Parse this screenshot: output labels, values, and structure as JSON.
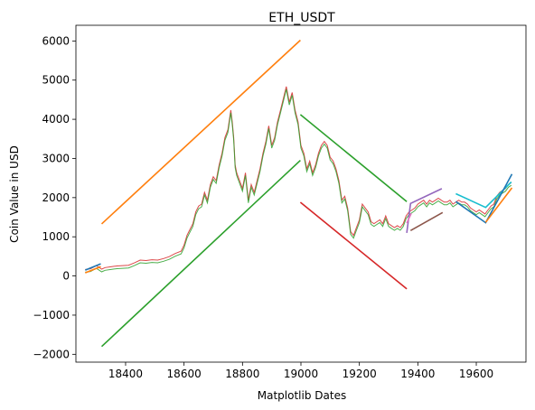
{
  "chart_data": {
    "type": "line",
    "title": "ETH_USDT",
    "xlabel": "Matplotlib Dates",
    "ylabel": "Coin Value in USD",
    "xlim": [
      18230,
      19770
    ],
    "ylim": [
      -2200,
      6400
    ],
    "grid": false,
    "x_ticks": [
      18200,
      18400,
      18600,
      18800,
      19000,
      19200,
      19400,
      19600
    ],
    "x_tick_labels": [
      "18200",
      "18400",
      "18600",
      "18800",
      "19000",
      "19200",
      "19400",
      "19600"
    ],
    "y_ticks": [
      -2000,
      -1000,
      0,
      1000,
      2000,
      3000,
      4000,
      5000,
      6000
    ],
    "y_tick_labels": [
      "−2000",
      "−1000",
      "0",
      "1000",
      "2000",
      "3000",
      "4000",
      "5000",
      "6000"
    ],
    "price": {
      "line_colors": [
        "#d62728",
        "#2ca02c"
      ],
      "points": [
        [
          18262,
          130
        ],
        [
          18280,
          150
        ],
        [
          18300,
          230
        ],
        [
          18318,
          140
        ],
        [
          18330,
          180
        ],
        [
          18350,
          200
        ],
        [
          18370,
          220
        ],
        [
          18390,
          230
        ],
        [
          18410,
          240
        ],
        [
          18430,
          300
        ],
        [
          18450,
          370
        ],
        [
          18470,
          360
        ],
        [
          18490,
          380
        ],
        [
          18510,
          370
        ],
        [
          18530,
          410
        ],
        [
          18550,
          460
        ],
        [
          18570,
          540
        ],
        [
          18590,
          600
        ],
        [
          18600,
          750
        ],
        [
          18610,
          1000
        ],
        [
          18620,
          1150
        ],
        [
          18630,
          1300
        ],
        [
          18640,
          1600
        ],
        [
          18650,
          1750
        ],
        [
          18660,
          1800
        ],
        [
          18670,
          2100
        ],
        [
          18680,
          1900
        ],
        [
          18690,
          2300
        ],
        [
          18700,
          2500
        ],
        [
          18710,
          2400
        ],
        [
          18720,
          2800
        ],
        [
          18730,
          3100
        ],
        [
          18740,
          3500
        ],
        [
          18750,
          3700
        ],
        [
          18760,
          4200
        ],
        [
          18765,
          3900
        ],
        [
          18770,
          3500
        ],
        [
          18775,
          2800
        ],
        [
          18780,
          2600
        ],
        [
          18790,
          2400
        ],
        [
          18800,
          2200
        ],
        [
          18810,
          2600
        ],
        [
          18820,
          1900
        ],
        [
          18830,
          2300
        ],
        [
          18840,
          2100
        ],
        [
          18850,
          2400
        ],
        [
          18860,
          2700
        ],
        [
          18870,
          3100
        ],
        [
          18880,
          3400
        ],
        [
          18890,
          3800
        ],
        [
          18900,
          3300
        ],
        [
          18910,
          3500
        ],
        [
          18920,
          3900
        ],
        [
          18930,
          4200
        ],
        [
          18940,
          4500
        ],
        [
          18950,
          4800
        ],
        [
          18960,
          4400
        ],
        [
          18970,
          4650
        ],
        [
          18980,
          4200
        ],
        [
          18990,
          3900
        ],
        [
          19000,
          3300
        ],
        [
          19010,
          3100
        ],
        [
          19020,
          2700
        ],
        [
          19030,
          2900
        ],
        [
          19040,
          2600
        ],
        [
          19050,
          2800
        ],
        [
          19060,
          3100
        ],
        [
          19070,
          3300
        ],
        [
          19080,
          3400
        ],
        [
          19090,
          3300
        ],
        [
          19100,
          3000
        ],
        [
          19110,
          2900
        ],
        [
          19120,
          2700
        ],
        [
          19130,
          2400
        ],
        [
          19140,
          1900
        ],
        [
          19150,
          2000
        ],
        [
          19160,
          1700
        ],
        [
          19170,
          1100
        ],
        [
          19180,
          1000
        ],
        [
          19190,
          1200
        ],
        [
          19200,
          1400
        ],
        [
          19210,
          1800
        ],
        [
          19220,
          1700
        ],
        [
          19230,
          1600
        ],
        [
          19240,
          1350
        ],
        [
          19250,
          1300
        ],
        [
          19260,
          1350
        ],
        [
          19270,
          1400
        ],
        [
          19280,
          1300
        ],
        [
          19290,
          1500
        ],
        [
          19300,
          1300
        ],
        [
          19310,
          1250
        ],
        [
          19320,
          1200
        ],
        [
          19330,
          1250
        ],
        [
          19340,
          1200
        ],
        [
          19350,
          1300
        ],
        [
          19360,
          1500
        ],
        [
          19370,
          1600
        ],
        [
          19380,
          1650
        ],
        [
          19390,
          1700
        ],
        [
          19400,
          1800
        ],
        [
          19410,
          1850
        ],
        [
          19420,
          1900
        ],
        [
          19430,
          1800
        ],
        [
          19440,
          1900
        ],
        [
          19450,
          1850
        ],
        [
          19460,
          1900
        ],
        [
          19470,
          1950
        ],
        [
          19480,
          1900
        ],
        [
          19490,
          1850
        ],
        [
          19500,
          1850
        ],
        [
          19510,
          1900
        ],
        [
          19520,
          1800
        ],
        [
          19530,
          1850
        ],
        [
          19540,
          1900
        ],
        [
          19550,
          1850
        ],
        [
          19560,
          1850
        ],
        [
          19570,
          1800
        ],
        [
          19580,
          1700
        ],
        [
          19590,
          1650
        ],
        [
          19600,
          1600
        ],
        [
          19610,
          1650
        ],
        [
          19620,
          1600
        ],
        [
          19630,
          1550
        ],
        [
          19640,
          1650
        ],
        [
          19650,
          1750
        ],
        [
          19660,
          1800
        ],
        [
          19670,
          2000
        ],
        [
          19680,
          2100
        ],
        [
          19690,
          2150
        ],
        [
          19700,
          2200
        ],
        [
          19710,
          2300
        ],
        [
          19720,
          2350
        ]
      ]
    },
    "segments": [
      {
        "color": "#1f77b4",
        "points": [
          [
            18262,
            150
          ],
          [
            18315,
            310
          ]
        ]
      },
      {
        "color": "#ff7f0e",
        "points": [
          [
            18262,
            80
          ],
          [
            18315,
            240
          ]
        ]
      },
      {
        "color": "#ff7f0e",
        "points": [
          [
            18318,
            1330
          ],
          [
            18998,
            6020
          ]
        ]
      },
      {
        "color": "#2ca02c",
        "points": [
          [
            18318,
            -1800
          ],
          [
            18998,
            2950
          ]
        ]
      },
      {
        "color": "#2ca02c",
        "points": [
          [
            18998,
            4120
          ],
          [
            19362,
            1900
          ]
        ]
      },
      {
        "color": "#d62728",
        "points": [
          [
            18998,
            1880
          ],
          [
            19362,
            -330
          ]
        ]
      },
      {
        "color": "#9467bd",
        "points": [
          [
            19362,
            1100
          ],
          [
            19375,
            1850
          ],
          [
            19482,
            2230
          ]
        ]
      },
      {
        "color": "#8c564b",
        "points": [
          [
            19375,
            1160
          ],
          [
            19485,
            1620
          ]
        ]
      },
      {
        "color": "#e377c2",
        "points": [
          [
            19362,
            1350
          ],
          [
            19378,
            1600
          ]
        ]
      },
      {
        "color": "#17becf",
        "points": [
          [
            19530,
            2100
          ],
          [
            19632,
            1750
          ],
          [
            19720,
            2400
          ]
        ]
      },
      {
        "color": "#1f77b4",
        "points": [
          [
            19530,
            1900
          ],
          [
            19632,
            1360
          ],
          [
            19722,
            2600
          ]
        ]
      },
      {
        "color": "#ff7f0e",
        "points": [
          [
            19632,
            1370
          ],
          [
            19722,
            2250
          ]
        ]
      }
    ]
  }
}
